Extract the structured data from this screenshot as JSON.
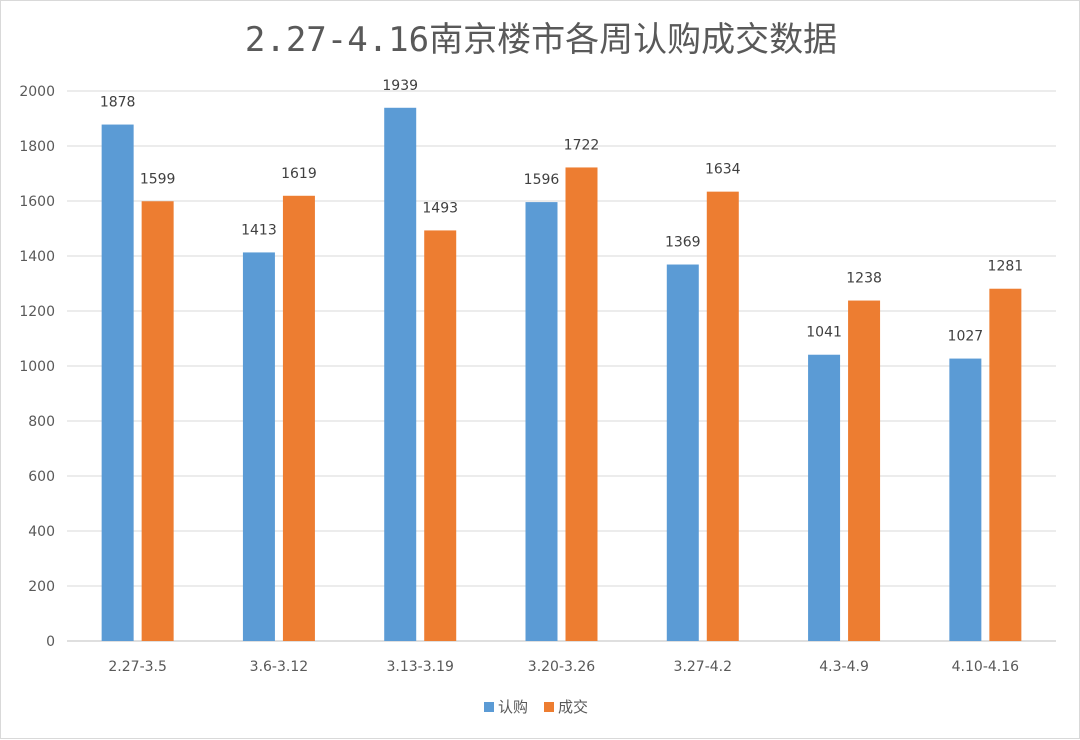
{
  "chart_data": {
    "type": "bar",
    "title": "2.27-4.16南京楼市各周认购成交数据",
    "categories": [
      "2.27-3.5",
      "3.6-3.12",
      "3.13-3.19",
      "3.20-3.26",
      "3.27-4.2",
      "4.3-4.9",
      "4.10-4.16"
    ],
    "series": [
      {
        "name": "认购",
        "color": "#5b9bd5",
        "values": [
          1878,
          1413,
          1939,
          1596,
          1369,
          1041,
          1027
        ]
      },
      {
        "name": "成交",
        "color": "#ed7d31",
        "values": [
          1599,
          1619,
          1493,
          1722,
          1634,
          1238,
          1281
        ]
      }
    ],
    "ylim": [
      0,
      2000
    ],
    "yticks": [
      0,
      200,
      400,
      600,
      800,
      1000,
      1200,
      1400,
      1600,
      1800,
      2000
    ],
    "grid": true,
    "legend": "bottom",
    "data_labels": true
  }
}
